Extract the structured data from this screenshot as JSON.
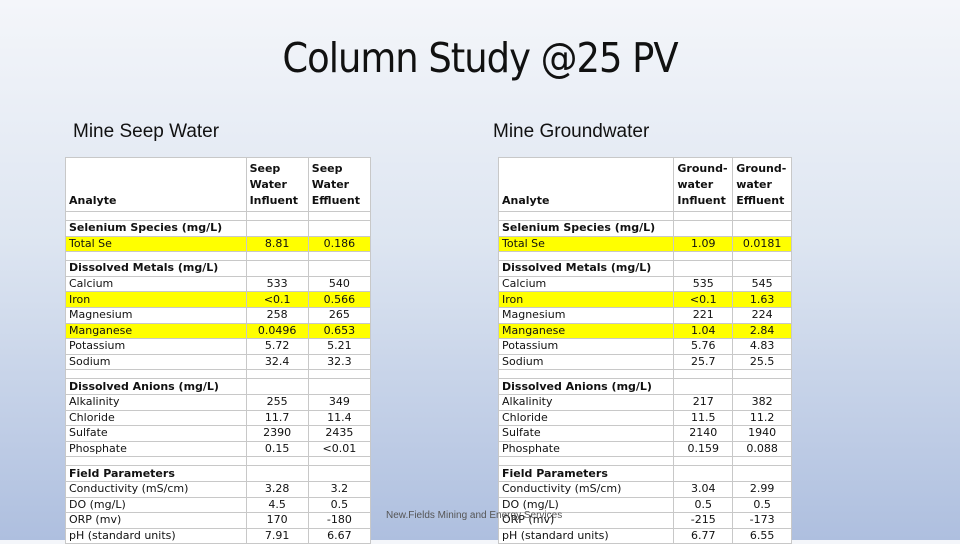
{
  "title": "Column Study @25 PV",
  "footer": "New.Fields Mining and Energy Services",
  "left": {
    "heading": "Mine Seep Water",
    "headers": {
      "analyte": "Analyte",
      "influent": "Seep Water Influent",
      "effluent": "Seep Water Effluent"
    },
    "rows": [
      {
        "type": "section",
        "label": "Selenium Species (mg/L)"
      },
      {
        "type": "data",
        "label": "Total Se",
        "influent": "8.81",
        "effluent": "0.186",
        "highlight": true
      },
      {
        "type": "section",
        "label": "Dissolved Metals (mg/L)"
      },
      {
        "type": "data",
        "label": "Calcium",
        "influent": "533",
        "effluent": "540"
      },
      {
        "type": "data",
        "label": "Iron",
        "influent": "<0.1",
        "effluent": "0.566",
        "highlight": true
      },
      {
        "type": "data",
        "label": "Magnesium",
        "influent": "258",
        "effluent": "265"
      },
      {
        "type": "data",
        "label": "Manganese",
        "influent": "0.0496",
        "effluent": "0.653",
        "highlight": true
      },
      {
        "type": "data",
        "label": "Potassium",
        "influent": "5.72",
        "effluent": "5.21"
      },
      {
        "type": "data",
        "label": "Sodium",
        "influent": "32.4",
        "effluent": "32.3"
      },
      {
        "type": "section",
        "label": "Dissolved Anions (mg/L)"
      },
      {
        "type": "data",
        "label": "Alkalinity",
        "influent": "255",
        "effluent": "349"
      },
      {
        "type": "data",
        "label": "Chloride",
        "influent": "11.7",
        "effluent": "11.4"
      },
      {
        "type": "data",
        "label": "Sulfate",
        "influent": "2390",
        "effluent": "2435"
      },
      {
        "type": "data",
        "label": "Phosphate",
        "influent": "0.15",
        "effluent": "<0.01"
      },
      {
        "type": "section",
        "label": "Field Parameters"
      },
      {
        "type": "data",
        "label": "Conductivity (mS/cm)",
        "influent": "3.28",
        "effluent": "3.2"
      },
      {
        "type": "data",
        "label": "DO (mg/L)",
        "influent": "4.5",
        "effluent": "0.5"
      },
      {
        "type": "data",
        "label": "ORP (mv)",
        "influent": "170",
        "effluent": "-180"
      },
      {
        "type": "data",
        "label": "pH (standard units)",
        "influent": "7.91",
        "effluent": "6.67"
      }
    ]
  },
  "right": {
    "heading": "Mine Groundwater",
    "headers": {
      "analyte": "Analyte",
      "influent": "Ground-water Influent",
      "effluent": "Ground-water Effluent"
    },
    "rows": [
      {
        "type": "section",
        "label": "Selenium Species (mg/L)"
      },
      {
        "type": "data",
        "label": "Total Se",
        "influent": "1.09",
        "effluent": "0.0181",
        "highlight": true
      },
      {
        "type": "section",
        "label": "Dissolved Metals (mg/L)"
      },
      {
        "type": "data",
        "label": "Calcium",
        "influent": "535",
        "effluent": "545"
      },
      {
        "type": "data",
        "label": "Iron",
        "influent": "<0.1",
        "effluent": "1.63",
        "highlight": true
      },
      {
        "type": "data",
        "label": "Magnesium",
        "influent": "221",
        "effluent": "224"
      },
      {
        "type": "data",
        "label": "Manganese",
        "influent": "1.04",
        "effluent": "2.84",
        "highlight": true
      },
      {
        "type": "data",
        "label": "Potassium",
        "influent": "5.76",
        "effluent": "4.83"
      },
      {
        "type": "data",
        "label": "Sodium",
        "influent": "25.7",
        "effluent": "25.5"
      },
      {
        "type": "section",
        "label": "Dissolved Anions (mg/L)"
      },
      {
        "type": "data",
        "label": "Alkalinity",
        "influent": "217",
        "effluent": "382"
      },
      {
        "type": "data",
        "label": "Chloride",
        "influent": "11.5",
        "effluent": "11.2"
      },
      {
        "type": "data",
        "label": "Sulfate",
        "influent": "2140",
        "effluent": "1940"
      },
      {
        "type": "data",
        "label": "Phosphate",
        "influent": "0.159",
        "effluent": "0.088"
      },
      {
        "type": "section",
        "label": "Field Parameters"
      },
      {
        "type": "data",
        "label": "Conductivity (mS/cm)",
        "influent": "3.04",
        "effluent": "2.99"
      },
      {
        "type": "data",
        "label": "DO (mg/L)",
        "influent": "0.5",
        "effluent": "0.5"
      },
      {
        "type": "data",
        "label": "ORP (mv)",
        "influent": "-215",
        "effluent": "-173"
      },
      {
        "type": "data",
        "label": "pH (standard units)",
        "influent": "6.77",
        "effluent": "6.55"
      }
    ]
  },
  "colors": {
    "highlight": "#ffff00",
    "background_top": "#f4f6fa",
    "background_bottom": "#aebfdf"
  }
}
